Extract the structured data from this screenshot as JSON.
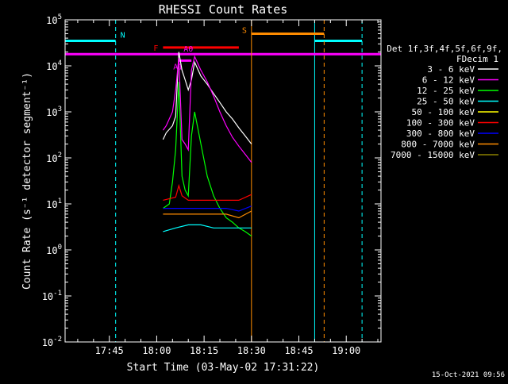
{
  "chart_data": {
    "type": "line",
    "title": "RHESSI Count Rates",
    "xlabel": "Start Time (03-May-02 17:31:22)",
    "ylabel": "Count Rate (s⁻¹ detector segment⁻¹)",
    "y_scale": "log",
    "ylim": [
      0.01,
      100000
    ],
    "x_unit": "minutes",
    "xlim": [
      "17:31",
      "19:11"
    ],
    "x_ticks": [
      "17:45",
      "18:00",
      "18:15",
      "18:30",
      "18:45",
      "19:00"
    ],
    "y_ticks": [
      "10^-2",
      "10^-1",
      "10^0",
      "10^1",
      "10^2",
      "10^3",
      "10^4",
      "10^5"
    ],
    "legend": {
      "placement": "right",
      "header1": "Det 1f,3f,4f,5f,6f,9f,",
      "header2": "FDecim 1"
    },
    "series": [
      {
        "name": "3 - 6 keV",
        "color": "#ffffff",
        "x": [
          "18:02",
          "18:03",
          "18:05",
          "18:06",
          "18:07",
          "18:08",
          "18:09",
          "18:10",
          "18:11",
          "18:12",
          "18:14",
          "18:16",
          "18:18",
          "18:20",
          "18:22",
          "18:24",
          "18:26",
          "18:28",
          "18:30"
        ],
        "y": [
          250,
          350,
          500,
          800,
          20000,
          8000,
          5000,
          3000,
          5000,
          12000,
          6000,
          4000,
          2500,
          1600,
          1000,
          700,
          450,
          300,
          200
        ]
      },
      {
        "name": "6 - 12 keV",
        "color": "#ff00ff",
        "x": [
          "18:02",
          "18:03",
          "18:05",
          "18:06",
          "18:07",
          "18:08",
          "18:09",
          "18:10",
          "18:11",
          "18:12",
          "18:14",
          "18:16",
          "18:18",
          "18:20",
          "18:22",
          "18:24",
          "18:26",
          "18:28",
          "18:30"
        ],
        "y": [
          400,
          500,
          1000,
          3000,
          15000,
          250,
          200,
          150,
          8000,
          16000,
          8000,
          4500,
          2200,
          1000,
          500,
          280,
          180,
          120,
          80
        ]
      },
      {
        "name": "12 - 25 keV",
        "color": "#00ff00",
        "x": [
          "18:02",
          "18:04",
          "18:05",
          "18:06",
          "18:07",
          "18:08",
          "18:09",
          "18:10",
          "18:11",
          "18:12",
          "18:14",
          "18:16",
          "18:18",
          "18:20",
          "18:22",
          "18:24",
          "18:26",
          "18:28",
          "18:30"
        ],
        "y": [
          8,
          10,
          30,
          150,
          4500,
          40,
          20,
          15,
          300,
          1000,
          200,
          40,
          15,
          8,
          5,
          4,
          3,
          2.5,
          2
        ]
      },
      {
        "name": "25 - 50 keV",
        "color": "#00ffff",
        "x": [
          "18:02",
          "18:06",
          "18:10",
          "18:14",
          "18:18",
          "18:22",
          "18:26",
          "18:30"
        ],
        "y": [
          2.5,
          3,
          3.5,
          3.5,
          3,
          3,
          3,
          3
        ]
      },
      {
        "name": "50 - 100 keV",
        "color": "#ffff00",
        "x": [],
        "y": []
      },
      {
        "name": "100 - 300 keV",
        "color": "#ff0000",
        "x": [
          "18:02",
          "18:06",
          "18:07",
          "18:08",
          "18:10",
          "18:14",
          "18:18",
          "18:22",
          "18:26",
          "18:30"
        ],
        "y": [
          12,
          14,
          25,
          15,
          12,
          12,
          12,
          12,
          12,
          16
        ]
      },
      {
        "name": "300 - 800 keV",
        "color": "#0000ff",
        "x": [
          "18:02",
          "18:06",
          "18:10",
          "18:14",
          "18:18",
          "18:22",
          "18:26",
          "18:30"
        ],
        "y": [
          8,
          8,
          8,
          8,
          8,
          8,
          7,
          9
        ]
      },
      {
        "name": "800 - 7000 keV",
        "color": "#ff8c00",
        "x": [
          "18:02",
          "18:06",
          "18:10",
          "18:14",
          "18:18",
          "18:22",
          "18:26",
          "18:30"
        ],
        "y": [
          6,
          6,
          6,
          6,
          6,
          6,
          5,
          7
        ]
      },
      {
        "name": "7000 - 15000 keV",
        "color": "#8b8000",
        "x": [],
        "y": []
      }
    ],
    "flags": [
      {
        "label": "N",
        "color": "#00ffff",
        "level": 35000,
        "segments": [
          [
            "17:31",
            "17:47"
          ],
          [
            "18:50",
            "19:05"
          ]
        ],
        "dashed_lines": [
          "17:47",
          "19:05"
        ],
        "solid_lines": [
          "17:31",
          "18:50"
        ]
      },
      {
        "label": "F",
        "color": "#ff0000",
        "level": 25000,
        "segments": [
          [
            "18:02",
            "18:26"
          ]
        ]
      },
      {
        "label": "A1",
        "color": "#ff00ff",
        "level": 13000,
        "segments": [
          [
            "18:07",
            "18:11"
          ]
        ]
      },
      {
        "label": "A0",
        "color": "#ff00ff",
        "level": 18000,
        "segments": [
          [
            "17:31",
            "19:11"
          ]
        ]
      },
      {
        "label": "S",
        "color": "#ff8c00",
        "level": 50000,
        "segments": [
          [
            "18:30",
            "18:53"
          ]
        ],
        "dashed_lines": [
          "18:53"
        ],
        "solid_lines": [
          "18:30"
        ]
      }
    ]
  },
  "timestamp": "15-Oct-2021 09:56"
}
